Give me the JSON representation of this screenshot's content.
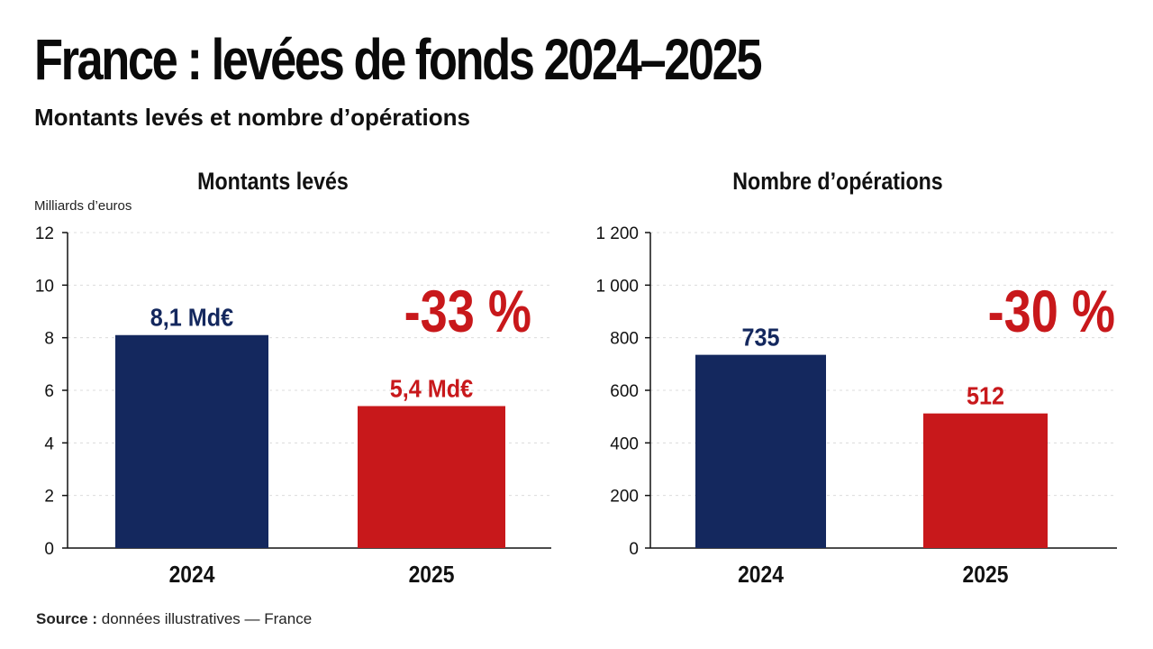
{
  "header": {
    "title": "France : levées de fonds 2024–2025",
    "subtitle": "Montants levés et nombre d’opérations"
  },
  "footer": {
    "source_label": "Source :",
    "source_text": "données illustratives — France"
  },
  "colors": {
    "navy": "#14285e",
    "red": "#c8181b",
    "grid": "#dcdcdc",
    "axis": "#111111"
  },
  "chart_data": [
    {
      "type": "bar",
      "title": "Montants levés",
      "ylabel": "Milliards d’euros",
      "xlabel": "",
      "categories": [
        "2024",
        "2025"
      ],
      "values": [
        8.1,
        5.4
      ],
      "data_labels": [
        "8,1 Md€",
        "5,4 Md€"
      ],
      "bar_colors": [
        "#14285e",
        "#c8181b"
      ],
      "ylim": [
        0,
        12
      ],
      "yticks": [
        0,
        2,
        4,
        6,
        8,
        10,
        12
      ],
      "ytick_labels": [
        "0",
        "2",
        "4",
        "6",
        "8",
        "10",
        "12"
      ],
      "grid": true,
      "change_annotation": "-33 %"
    },
    {
      "type": "bar",
      "title": "Nombre d’opérations",
      "ylabel": "",
      "xlabel": "",
      "categories": [
        "2024",
        "2025"
      ],
      "values": [
        735,
        512
      ],
      "data_labels": [
        "735",
        "512"
      ],
      "bar_colors": [
        "#14285e",
        "#c8181b"
      ],
      "ylim": [
        0,
        1200
      ],
      "yticks": [
        0,
        200,
        400,
        600,
        800,
        1000,
        1200
      ],
      "ytick_labels": [
        "0",
        "200",
        "400",
        "600",
        "800",
        "1 000",
        "1 200"
      ],
      "grid": true,
      "change_annotation": "-30 %"
    }
  ]
}
